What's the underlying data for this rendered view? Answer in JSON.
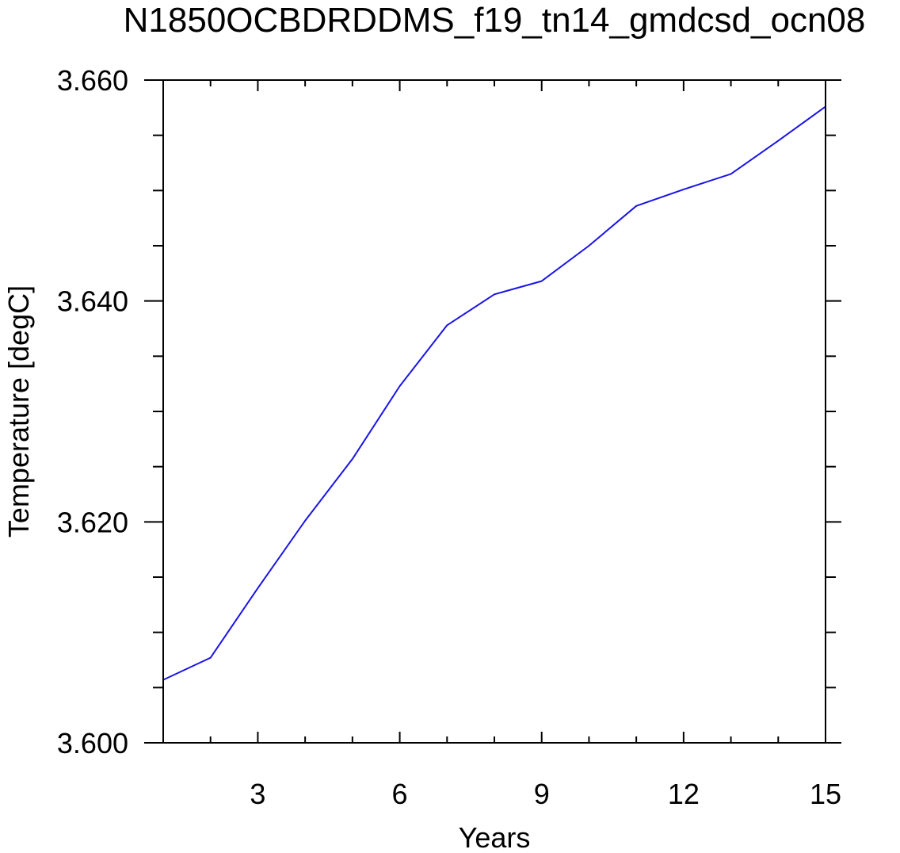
{
  "chart_data": {
    "type": "line",
    "title": "N1850OCBDRDDMS_f19_tn14_gmdcsd_ocn08",
    "xlabel": "Years",
    "ylabel": "Temperature [degC]",
    "xlim": [
      1,
      15
    ],
    "ylim": [
      3.6,
      3.66
    ],
    "x_ticks": [
      3,
      6,
      9,
      12,
      15
    ],
    "x_minor_ticks": [
      1,
      2,
      4,
      5,
      7,
      8,
      10,
      11,
      13,
      14
    ],
    "y_ticks": [
      3.6,
      3.62,
      3.64,
      3.66
    ],
    "y_tick_labels": [
      "3.600",
      "3.620",
      "3.640",
      "3.660"
    ],
    "y_minor_ticks": [
      3.605,
      3.61,
      3.615,
      3.625,
      3.63,
      3.635,
      3.645,
      3.65,
      3.655
    ],
    "grid": false,
    "legend": "none",
    "series": [
      {
        "color": "#1a14e6",
        "x": [
          1,
          2,
          3,
          4,
          5,
          6,
          7,
          8,
          9,
          10,
          11,
          12,
          13,
          14,
          15
        ],
        "values": [
          3.6057,
          3.6077,
          3.614,
          3.6201,
          3.6257,
          3.6323,
          3.6378,
          3.6406,
          3.6418,
          3.645,
          3.6486,
          3.6501,
          3.6515,
          3.6545,
          3.6576
        ]
      }
    ]
  }
}
